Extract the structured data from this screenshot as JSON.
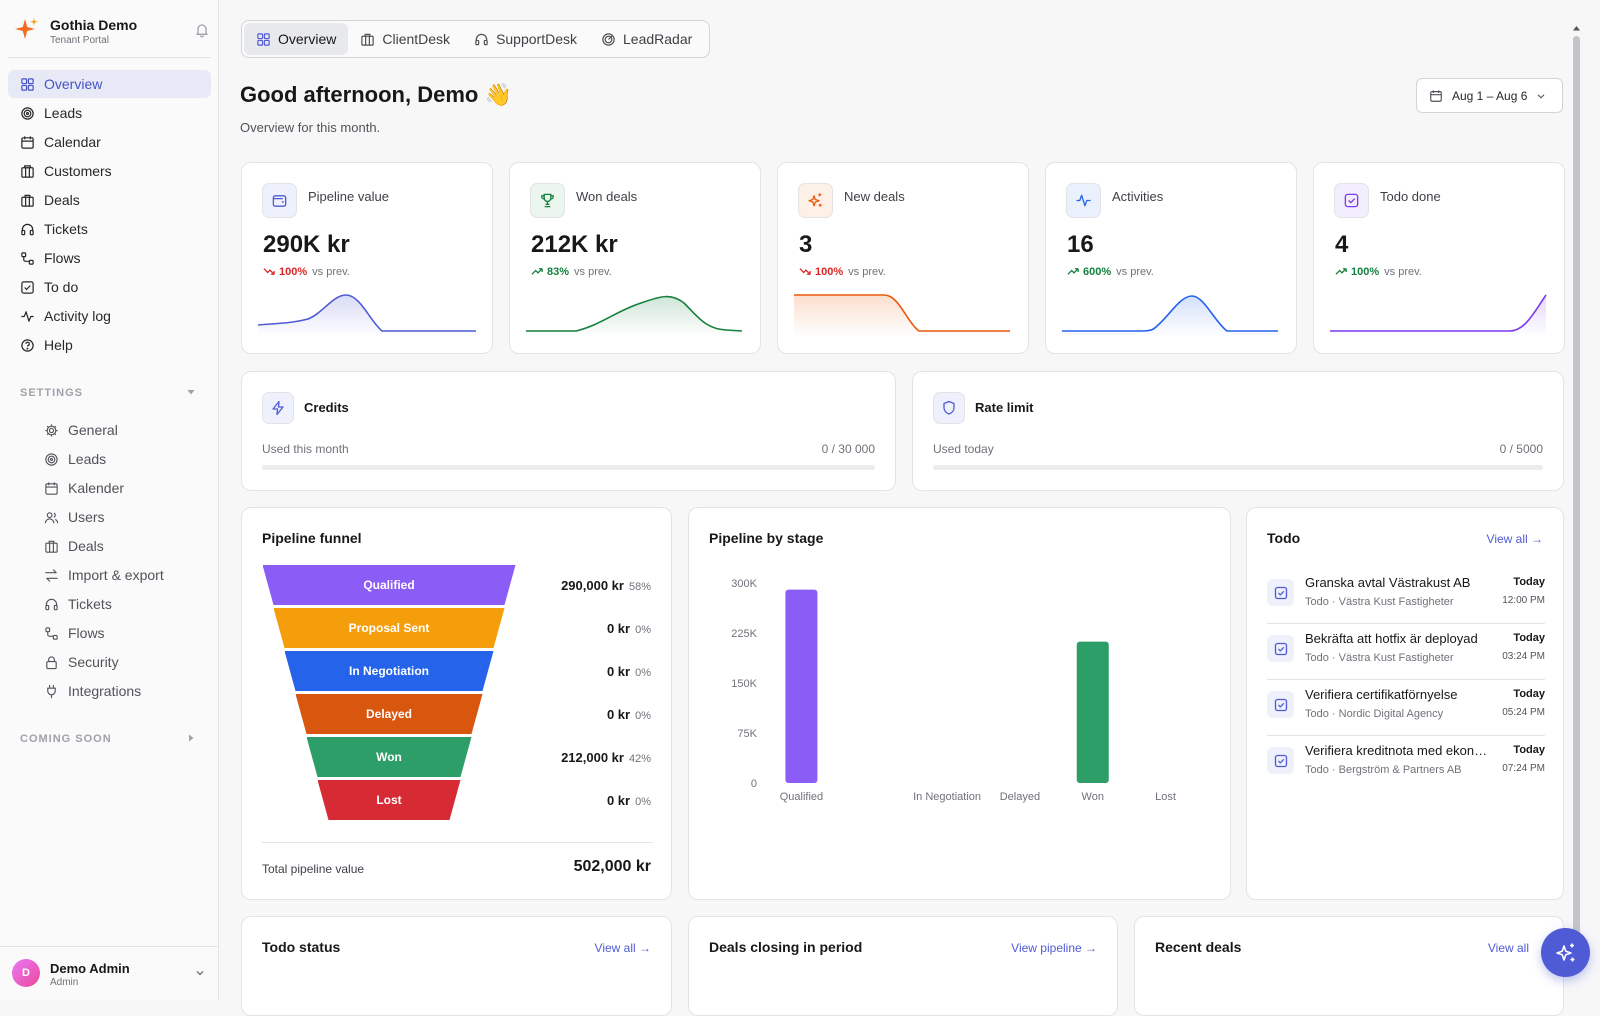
{
  "brand": {
    "name": "Gothia Demo",
    "sub": "Tenant Portal"
  },
  "nav": [
    {
      "label": "Overview",
      "icon": "grid-icon"
    },
    {
      "label": "Leads",
      "icon": "target-icon"
    },
    {
      "label": "Calendar",
      "icon": "calendar-icon"
    },
    {
      "label": "Customers",
      "icon": "building-icon"
    },
    {
      "label": "Deals",
      "icon": "briefcase-icon"
    },
    {
      "label": "Tickets",
      "icon": "headset-icon"
    },
    {
      "label": "Flows",
      "icon": "flow-icon"
    },
    {
      "label": "To do",
      "icon": "check-square-icon"
    },
    {
      "label": "Activity log",
      "icon": "activity-icon"
    },
    {
      "label": "Help",
      "icon": "help-icon"
    }
  ],
  "settings": {
    "header": "SETTINGS",
    "items": [
      {
        "label": "General",
        "icon": "gear-icon"
      },
      {
        "label": "Leads",
        "icon": "target-icon"
      },
      {
        "label": "Kalender",
        "icon": "calendar-icon"
      },
      {
        "label": "Users",
        "icon": "users-icon"
      },
      {
        "label": "Deals",
        "icon": "briefcase-icon"
      },
      {
        "label": "Import & export",
        "icon": "arrows-icon"
      },
      {
        "label": "Tickets",
        "icon": "headset-icon"
      },
      {
        "label": "Flows",
        "icon": "flow-icon"
      },
      {
        "label": "Security",
        "icon": "lock-icon"
      },
      {
        "label": "Integrations",
        "icon": "plug-icon"
      }
    ]
  },
  "coming_soon": {
    "header": "COMING SOON"
  },
  "user": {
    "initial": "D",
    "name": "Demo Admin",
    "role": "Admin"
  },
  "tabs": [
    {
      "label": "Overview"
    },
    {
      "label": "ClientDesk"
    },
    {
      "label": "SupportDesk"
    },
    {
      "label": "LeadRadar"
    }
  ],
  "greeting": {
    "title": "Good afternoon, Demo 👋",
    "sub": "Overview for this month."
  },
  "date_range": "Aug 1 – Aug 6",
  "kpis": [
    {
      "label": "Pipeline value",
      "value": "290K kr",
      "delta": "100%",
      "prev": "vs prev.",
      "trend": "down",
      "color": "#4f5bd5"
    },
    {
      "label": "Won deals",
      "value": "212K kr",
      "delta": "83%",
      "prev": "vs prev.",
      "trend": "up",
      "color": "#15803d"
    },
    {
      "label": "New deals",
      "value": "3",
      "delta": "100%",
      "prev": "vs prev.",
      "trend": "down",
      "color": "#ea580c"
    },
    {
      "label": "Activities",
      "value": "16",
      "delta": "600%",
      "prev": "vs prev.",
      "trend": "up",
      "color": "#2563eb"
    },
    {
      "label": "Todo done",
      "value": "4",
      "delta": "100%",
      "prev": "vs prev.",
      "trend": "up",
      "color": "#7c3aed"
    }
  ],
  "limits": [
    {
      "title": "Credits",
      "sub": "Used this month",
      "count": "0 / 30 000",
      "used_fraction": 0
    },
    {
      "title": "Rate limit",
      "sub": "Used today",
      "count": "0 / 5000",
      "used_fraction": 0
    }
  ],
  "funnel": {
    "title": "Pipeline funnel",
    "stages": [
      {
        "label": "Qualified",
        "value": "290,000 kr",
        "pct": "58%",
        "color": "#8b5cf6"
      },
      {
        "label": "Proposal Sent",
        "value": "0 kr",
        "pct": "0%",
        "color": "#f59e0b"
      },
      {
        "label": "In Negotiation",
        "value": "0 kr",
        "pct": "0%",
        "color": "#2563eb"
      },
      {
        "label": "Delayed",
        "value": "0 kr",
        "pct": "0%",
        "color": "#d9560f"
      },
      {
        "label": "Won",
        "value": "212,000 kr",
        "pct": "42%",
        "color": "#2e9e68"
      },
      {
        "label": "Lost",
        "value": "0 kr",
        "pct": "0%",
        "color": "#d62b35"
      }
    ],
    "total_label": "Total pipeline value",
    "total_value": "502,000 kr"
  },
  "chart_data": {
    "type": "bar",
    "title": "Pipeline by stage",
    "categories": [
      "Qualified",
      "Proposal Sent",
      "In Negotiation",
      "Delayed",
      "Won",
      "Lost"
    ],
    "category_labels_shown": [
      "Qualified",
      "",
      "In Negotiation",
      "Delayed",
      "Won",
      "Lost"
    ],
    "values": [
      290000,
      0,
      0,
      0,
      212000,
      0
    ],
    "colors": [
      "#8b5cf6",
      "#f59e0b",
      "#2563eb",
      "#d9560f",
      "#2e9e68",
      "#d62b35"
    ],
    "yticks": [
      "0",
      "75K",
      "150K",
      "225K",
      "300K"
    ],
    "ylim": [
      0,
      300000
    ],
    "grid": false
  },
  "todo": {
    "title": "Todo",
    "view_all": "View all →",
    "items": [
      {
        "title": "Granska avtal Västrakust AB",
        "sub": "Todo · Västra Kust Fastigheter",
        "day": "Today",
        "time": "12:00 PM"
      },
      {
        "title": "Bekräfta att hotfix är deployad",
        "sub": "Todo · Västra Kust Fastigheter",
        "day": "Today",
        "time": "03:24 PM"
      },
      {
        "title": "Verifiera certifikatförnyelse",
        "sub": "Todo · Nordic Digital Agency",
        "day": "Today",
        "time": "05:24 PM"
      },
      {
        "title": "Verifiera kreditnota med ekonomi",
        "sub": "Todo · Bergström & Partners AB",
        "day": "Today",
        "time": "07:24 PM"
      }
    ]
  },
  "bottom": {
    "todo_status": {
      "title": "Todo status",
      "link": "View all →"
    },
    "deals_closing": {
      "title": "Deals closing in period",
      "link": "View pipeline →"
    },
    "recent_deals": {
      "title": "Recent deals",
      "link": "View all"
    }
  }
}
